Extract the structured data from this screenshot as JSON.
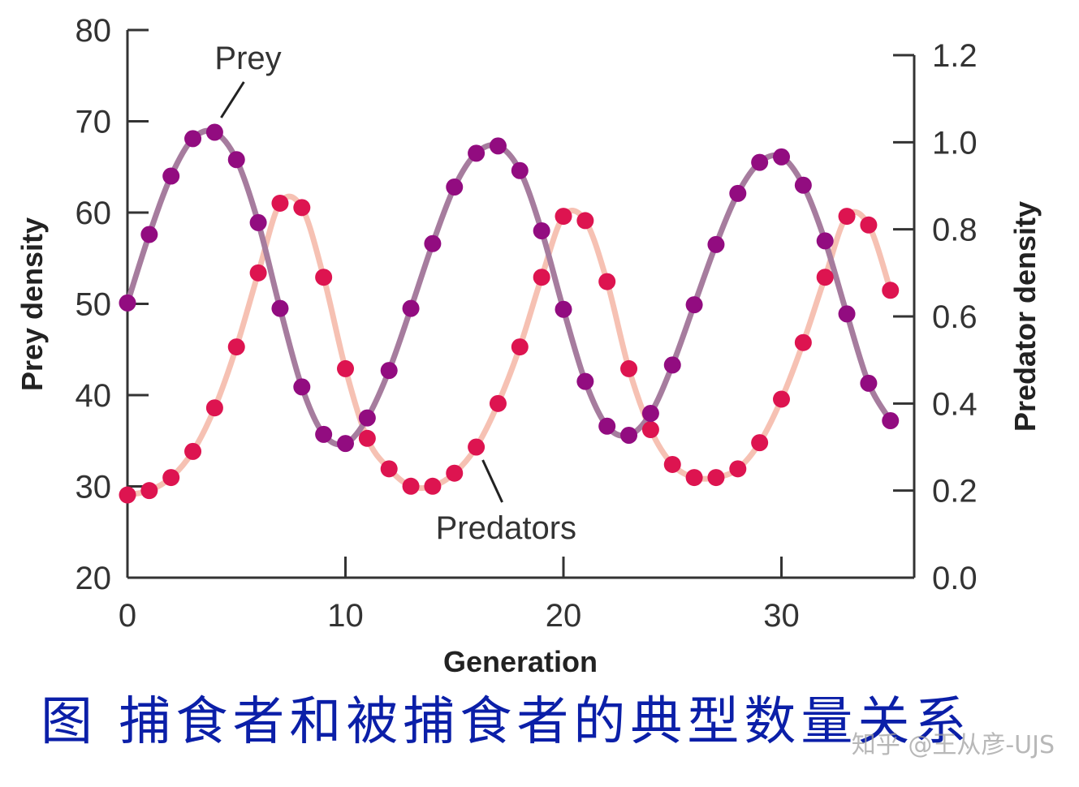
{
  "chart_data": {
    "type": "line",
    "title": "",
    "xlabel": "Generation",
    "ylabel_left": "Prey density",
    "ylabel_right": "Predator density",
    "xlim": [
      0,
      36
    ],
    "ylim_left": [
      20,
      80
    ],
    "ylim_right": [
      0.0,
      1.2
    ],
    "x_ticks": [
      "0",
      "10",
      "20",
      "30"
    ],
    "x_tick_values": [
      0,
      10,
      20,
      30
    ],
    "y_left_ticks": [
      "20",
      "30",
      "40",
      "50",
      "60",
      "70",
      "80"
    ],
    "y_left_tick_values": [
      20,
      30,
      40,
      50,
      60,
      70,
      80
    ],
    "y_right_ticks": [
      "0.0",
      "0.2",
      "0.4",
      "0.6",
      "0.8",
      "1.0",
      "1.2"
    ],
    "y_right_tick_values": [
      0.0,
      0.2,
      0.4,
      0.6,
      0.8,
      1.0,
      1.2
    ],
    "grid": false,
    "series": [
      {
        "name": "Prey",
        "axis": "left",
        "line_color": "#a67c9e",
        "marker_color": "#920c80",
        "x": [
          0,
          1,
          2,
          3,
          4,
          5,
          6,
          7,
          8,
          9,
          10,
          11,
          12,
          13,
          14,
          15,
          16,
          17,
          18,
          19,
          20,
          21,
          22,
          23,
          24,
          25,
          26,
          27,
          28,
          29,
          30,
          31,
          32,
          33,
          34,
          35
        ],
        "values": [
          50.1,
          57.6,
          64.0,
          68.1,
          68.8,
          65.8,
          58.9,
          49.5,
          40.9,
          35.7,
          34.7,
          37.5,
          42.7,
          49.5,
          56.6,
          62.8,
          66.5,
          67.3,
          64.6,
          58.0,
          49.4,
          41.5,
          36.6,
          35.6,
          38.0,
          43.3,
          49.9,
          56.5,
          62.1,
          65.5,
          66.1,
          63.0,
          56.9,
          48.9,
          41.3,
          37.2
        ]
      },
      {
        "name": "Predators",
        "axis": "right",
        "line_color": "#f6c1b3",
        "marker_color": "#dd1450",
        "x": [
          0,
          1,
          2,
          3,
          4,
          5,
          6,
          7,
          8,
          9,
          10,
          11,
          12,
          13,
          14,
          15,
          16,
          17,
          18,
          19,
          20,
          21,
          22,
          23,
          24,
          25,
          26,
          27,
          28,
          29,
          30,
          31,
          32,
          33,
          34,
          35
        ],
        "values": [
          0.19,
          0.2,
          0.23,
          0.29,
          0.39,
          0.53,
          0.7,
          0.86,
          0.85,
          0.69,
          0.48,
          0.32,
          0.25,
          0.21,
          0.21,
          0.24,
          0.3,
          0.4,
          0.53,
          0.69,
          0.83,
          0.82,
          0.68,
          0.48,
          0.34,
          0.26,
          0.23,
          0.23,
          0.25,
          0.31,
          0.41,
          0.54,
          0.69,
          0.83,
          0.81,
          0.66
        ]
      }
    ],
    "annotations": [
      {
        "text": "Prey",
        "series": "Prey",
        "at_x": 4
      },
      {
        "text": "Predators",
        "series": "Predators",
        "at_x": 16
      }
    ]
  },
  "caption": "图  捕食者和被捕食者的典型数量关系",
  "watermark": "知乎 @王从彦-UJS"
}
